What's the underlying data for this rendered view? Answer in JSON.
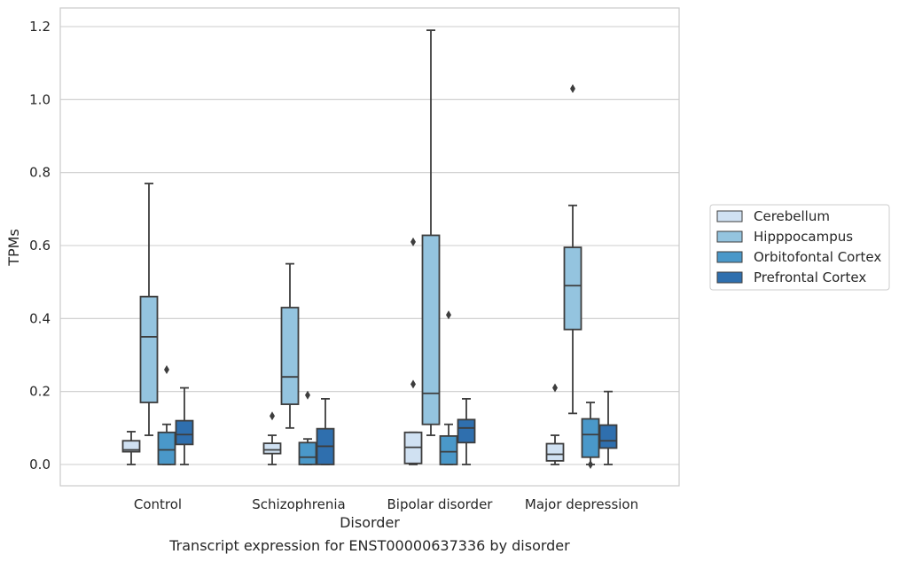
{
  "caption": "Transcript expression for ENST00000637336 by disorder",
  "chart_data": {
    "type": "box",
    "title": "",
    "xlabel": "Disorder",
    "ylabel": "TPMs",
    "ylim": [
      -0.06,
      1.25
    ],
    "yticks": [
      0.0,
      0.2,
      0.4,
      0.6,
      0.8,
      1.0,
      1.2
    ],
    "ytick_labels": [
      "0.0",
      "0.2",
      "0.4",
      "0.6",
      "0.8",
      "1.0",
      "1.2"
    ],
    "grid": true,
    "legend_position": "right",
    "categories": [
      "Control",
      "Schizophrenia",
      "Bipolar disorder",
      "Major depression"
    ],
    "series": [
      {
        "name": "Cerebellum",
        "color": "#d0e1f2",
        "boxes": [
          {
            "whislo": 0.0,
            "q1": 0.035,
            "med": 0.04,
            "q3": 0.065,
            "whishi": 0.09,
            "fliers": []
          },
          {
            "whislo": 0.0,
            "q1": 0.03,
            "med": 0.04,
            "q3": 0.058,
            "whishi": 0.08,
            "fliers": [
              0.133
            ]
          },
          {
            "whislo": 0.0,
            "q1": 0.003,
            "med": 0.047,
            "q3": 0.088,
            "whishi": 0.088,
            "fliers": [
              0.61,
              0.22
            ]
          },
          {
            "whislo": 0.0,
            "q1": 0.01,
            "med": 0.028,
            "q3": 0.057,
            "whishi": 0.08,
            "fliers": [
              0.21
            ]
          }
        ]
      },
      {
        "name": "Hipppocampus",
        "color": "#94c4df",
        "boxes": [
          {
            "whislo": 0.08,
            "q1": 0.17,
            "med": 0.35,
            "q3": 0.46,
            "whishi": 0.77,
            "fliers": []
          },
          {
            "whislo": 0.1,
            "q1": 0.165,
            "med": 0.24,
            "q3": 0.43,
            "whishi": 0.55,
            "fliers": []
          },
          {
            "whislo": 0.08,
            "q1": 0.11,
            "med": 0.195,
            "q3": 0.628,
            "whishi": 1.19,
            "fliers": []
          },
          {
            "whislo": 0.14,
            "q1": 0.37,
            "med": 0.49,
            "q3": 0.595,
            "whishi": 0.71,
            "fliers": [
              1.03
            ]
          }
        ]
      },
      {
        "name": "Orbitofontal Cortex",
        "color": "#4a98c9",
        "boxes": [
          {
            "whislo": 0.0,
            "q1": 0.0,
            "med": 0.04,
            "q3": 0.088,
            "whishi": 0.11,
            "fliers": [
              0.26
            ]
          },
          {
            "whislo": 0.0,
            "q1": 0.0,
            "med": 0.02,
            "q3": 0.06,
            "whishi": 0.07,
            "fliers": [
              0.19
            ]
          },
          {
            "whislo": 0.0,
            "q1": 0.0,
            "med": 0.035,
            "q3": 0.078,
            "whishi": 0.11,
            "fliers": [
              0.41
            ]
          },
          {
            "whislo": 0.0,
            "q1": 0.02,
            "med": 0.082,
            "q3": 0.125,
            "whishi": 0.17,
            "fliers": [
              0.0
            ]
          }
        ]
      },
      {
        "name": "Prefrontal Cortex",
        "color": "#2f6fae",
        "boxes": [
          {
            "whislo": 0.0,
            "q1": 0.055,
            "med": 0.082,
            "q3": 0.12,
            "whishi": 0.21,
            "fliers": []
          },
          {
            "whislo": 0.0,
            "q1": 0.0,
            "med": 0.05,
            "q3": 0.098,
            "whishi": 0.18,
            "fliers": []
          },
          {
            "whislo": 0.0,
            "q1": 0.06,
            "med": 0.1,
            "q3": 0.123,
            "whishi": 0.18,
            "fliers": []
          },
          {
            "whislo": 0.0,
            "q1": 0.045,
            "med": 0.065,
            "q3": 0.108,
            "whishi": 0.2,
            "fliers": []
          }
        ]
      }
    ]
  }
}
